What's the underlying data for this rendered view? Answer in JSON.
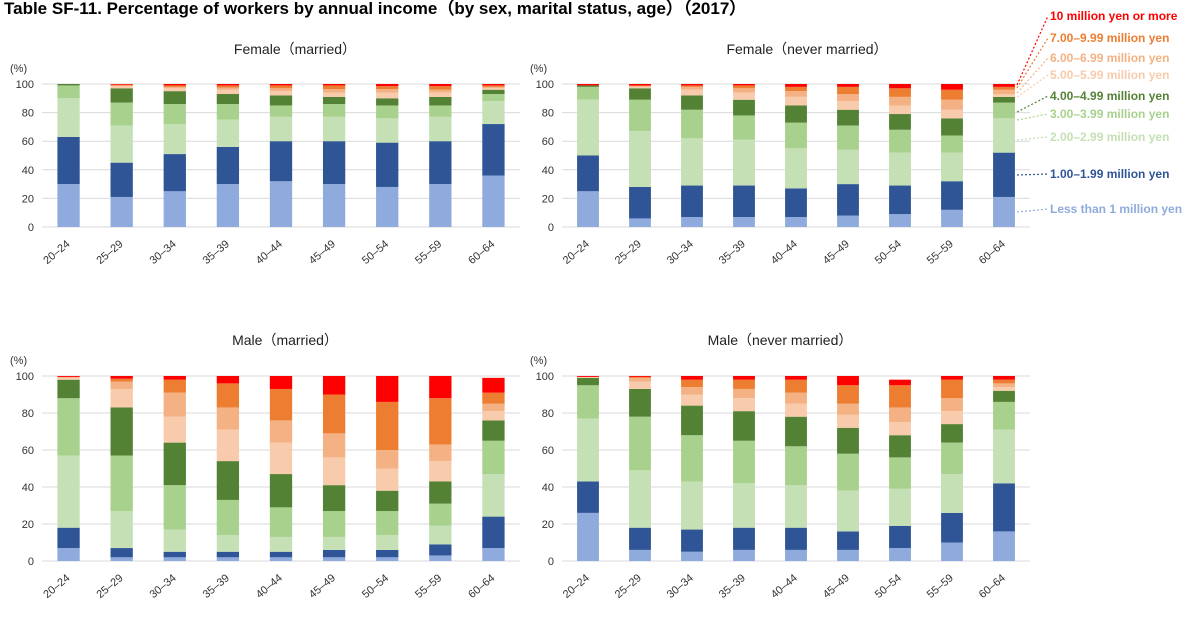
{
  "title": "Table SF-11. Percentage of workers by annual income（by sex, marital status, age）（2017）",
  "unit": "(%)",
  "legend": [
    {
      "label": "10 million yen or more",
      "color": "#ff0000"
    },
    {
      "label": "7.00–9.99 million yen",
      "color": "#ed7d31"
    },
    {
      "label": "6.00–6.99 million yen",
      "color": "#f4b183"
    },
    {
      "label": "5.00–5.99 million yen",
      "color": "#f8cbad"
    },
    {
      "label": "4.00–4.99 million yen",
      "color": "#548235"
    },
    {
      "label": "3.00–3.99 million yen",
      "color": "#a9d18e"
    },
    {
      "label": "2.00–2.99 million yen",
      "color": "#c5e0b4"
    },
    {
      "label": "1.00–1.99 million yen",
      "color": "#2f5597"
    },
    {
      "label": "Less than 1 million yen",
      "color": "#8faadc"
    }
  ],
  "chart_data": [
    {
      "type": "bar",
      "stacked": true,
      "title": "Female（married）",
      "ylim": [
        0,
        100
      ],
      "yticks": [
        0,
        20,
        40,
        60,
        80,
        100
      ],
      "categories": [
        "20–24",
        "25–29",
        "30–34",
        "35–39",
        "40–44",
        "45–49",
        "50–54",
        "55–59",
        "60–64"
      ],
      "series": [
        {
          "name": "Less than 1 million yen",
          "values": [
            30,
            21,
            25,
            30,
            32,
            30,
            28,
            30,
            36
          ]
        },
        {
          "name": "1.00–1.99 million yen",
          "values": [
            33,
            24,
            26,
            26,
            28,
            30,
            31,
            30,
            36
          ]
        },
        {
          "name": "2.00–2.99 million yen",
          "values": [
            27,
            26,
            21,
            19,
            17,
            17,
            17,
            17,
            16
          ]
        },
        {
          "name": "3.00–3.99 million yen",
          "values": [
            9,
            16,
            14,
            11,
            8,
            9,
            9,
            8,
            5
          ]
        },
        {
          "name": "4.00–4.99 million yen",
          "values": [
            1,
            10,
            9,
            7,
            7,
            5,
            5,
            6,
            3
          ]
        },
        {
          "name": "5.00–5.99 million yen",
          "values": [
            0,
            1.5,
            2,
            3,
            3,
            3,
            4,
            3,
            1
          ]
        },
        {
          "name": "6.00–6.99 million yen",
          "values": [
            0,
            0.5,
            1,
            1.5,
            2,
            2.5,
            2.5,
            2,
            1
          ]
        },
        {
          "name": "7.00–9.99 million yen",
          "values": [
            0,
            0.5,
            1,
            1.5,
            2,
            2.5,
            2,
            2.5,
            1
          ]
        },
        {
          "name": "10 million yen or more",
          "values": [
            0,
            0.5,
            1,
            1,
            1,
            1,
            1.5,
            1.5,
            1
          ]
        }
      ]
    },
    {
      "type": "bar",
      "stacked": true,
      "title": "Female（never married）",
      "ylim": [
        0,
        100
      ],
      "yticks": [
        0,
        20,
        40,
        60,
        80,
        100
      ],
      "categories": [
        "20–24",
        "25–29",
        "30–34",
        "35–39",
        "40–44",
        "45–49",
        "50–54",
        "55–59",
        "60–64"
      ],
      "series": [
        {
          "name": "Less than 1 million yen",
          "values": [
            25,
            6,
            7,
            7,
            7,
            8,
            9,
            12,
            21
          ]
        },
        {
          "name": "1.00–1.99 million yen",
          "values": [
            25,
            22,
            22,
            22,
            20,
            22,
            20,
            20,
            31
          ]
        },
        {
          "name": "2.00–2.99 million yen",
          "values": [
            39,
            39,
            33,
            32,
            28,
            24,
            23,
            20,
            24
          ]
        },
        {
          "name": "3.00–3.99 million yen",
          "values": [
            9,
            22,
            20,
            17,
            18,
            17,
            16,
            12,
            11
          ]
        },
        {
          "name": "4.00–4.99 million yen",
          "values": [
            1,
            8,
            10,
            11,
            12,
            11,
            11,
            12,
            4
          ]
        },
        {
          "name": "5.00–5.99 million yen",
          "values": [
            0,
            1,
            4,
            5,
            6,
            6,
            6,
            6,
            2
          ]
        },
        {
          "name": "6.00–6.99 million yen",
          "values": [
            0,
            0.5,
            2,
            3,
            4,
            5,
            6,
            7,
            3
          ]
        },
        {
          "name": "7.00–9.99 million yen",
          "values": [
            0,
            0.5,
            1,
            2,
            3,
            5,
            6,
            7,
            2
          ]
        },
        {
          "name": "10 million yen or more",
          "values": [
            1,
            1,
            1,
            1,
            2,
            2,
            3,
            4,
            2
          ]
        }
      ]
    },
    {
      "type": "bar",
      "stacked": true,
      "title": "Male（married）",
      "ylim": [
        0,
        100
      ],
      "yticks": [
        0,
        20,
        40,
        60,
        80,
        100
      ],
      "categories": [
        "20–24",
        "25–29",
        "30–34",
        "35–39",
        "40–44",
        "45–49",
        "50–54",
        "55–59",
        "60–64"
      ],
      "series": [
        {
          "name": "Less than 1 million yen",
          "values": [
            7,
            2,
            2,
            2,
            2,
            2,
            2,
            3,
            7
          ]
        },
        {
          "name": "1.00–1.99 million yen",
          "values": [
            11,
            5,
            3,
            3,
            3,
            4,
            4,
            6,
            17
          ]
        },
        {
          "name": "2.00–2.99 million yen",
          "values": [
            39,
            20,
            12,
            9,
            8,
            7,
            8,
            10,
            23
          ]
        },
        {
          "name": "3.00–3.99 million yen",
          "values": [
            31,
            30,
            24,
            19,
            16,
            14,
            13,
            12,
            18
          ]
        },
        {
          "name": "4.00–4.99 million yen",
          "values": [
            10,
            26,
            23,
            21,
            18,
            14,
            11,
            12,
            11
          ]
        },
        {
          "name": "5.00–5.99 million yen",
          "values": [
            1,
            10,
            14,
            17,
            17,
            15,
            12,
            11,
            5
          ]
        },
        {
          "name": "6.00–6.99 million yen",
          "values": [
            0.5,
            4,
            13,
            12,
            12,
            13,
            10,
            9,
            4
          ]
        },
        {
          "name": "7.00–9.99 million yen",
          "values": [
            0,
            1.5,
            7,
            13,
            17,
            21,
            26,
            25,
            6
          ]
        },
        {
          "name": "10 million yen or more",
          "values": [
            0.5,
            1.5,
            2,
            4,
            7,
            10,
            14,
            12,
            8
          ]
        }
      ]
    },
    {
      "type": "bar",
      "stacked": true,
      "title": "Male（never married）",
      "ylim": [
        0,
        100
      ],
      "yticks": [
        0,
        20,
        40,
        60,
        80,
        100
      ],
      "categories": [
        "20–24",
        "25–29",
        "30–34",
        "35–39",
        "40–44",
        "45–49",
        "50–54",
        "55–59",
        "60–64"
      ],
      "series": [
        {
          "name": "Less than 1 million yen",
          "values": [
            26,
            6,
            5,
            6,
            6,
            6,
            7,
            10,
            16
          ]
        },
        {
          "name": "1.00–1.99 million yen",
          "values": [
            17,
            12,
            12,
            12,
            12,
            10,
            12,
            16,
            26
          ]
        },
        {
          "name": "2.00–2.99 million yen",
          "values": [
            34,
            31,
            26,
            24,
            23,
            22,
            20,
            21,
            29
          ]
        },
        {
          "name": "3.00–3.99 million yen",
          "values": [
            18,
            29,
            25,
            23,
            21,
            20,
            17,
            17,
            15
          ]
        },
        {
          "name": "4.00–4.99 million yen",
          "values": [
            4,
            15,
            16,
            16,
            16,
            14,
            12,
            10,
            6
          ]
        },
        {
          "name": "5.00–5.99 million yen",
          "values": [
            0.5,
            4,
            6,
            7,
            7,
            7,
            7,
            7,
            2
          ]
        },
        {
          "name": "6.00–6.99 million yen",
          "values": [
            0,
            2,
            4,
            5,
            6,
            6,
            8,
            7,
            2
          ]
        },
        {
          "name": "7.00–9.99 million yen",
          "values": [
            0,
            0.5,
            4,
            5,
            7,
            10,
            12,
            10,
            2
          ]
        },
        {
          "name": "10 million yen or more",
          "values": [
            0.5,
            0.5,
            2,
            2,
            2,
            5,
            3,
            2,
            2
          ]
        }
      ]
    }
  ]
}
